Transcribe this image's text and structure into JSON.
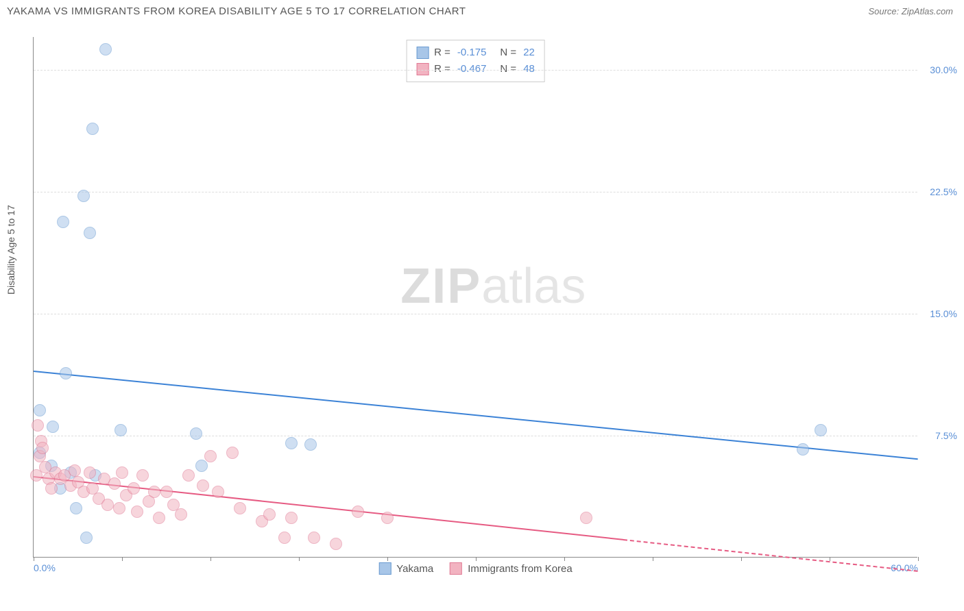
{
  "header": {
    "title": "YAKAMA VS IMMIGRANTS FROM KOREA DISABILITY AGE 5 TO 17 CORRELATION CHART",
    "source": "Source: ZipAtlas.com"
  },
  "chart": {
    "type": "scatter",
    "ylabel": "Disability Age 5 to 17",
    "watermark_zip": "ZIP",
    "watermark_atlas": "atlas",
    "xlim": [
      0,
      60
    ],
    "ylim": [
      0,
      32
    ],
    "xtick_positions": [
      0,
      6,
      12,
      18,
      24,
      30,
      36,
      42,
      48,
      54,
      60
    ],
    "xtick_labels": {
      "0": "0.0%",
      "60": "60.0%"
    },
    "ytick_positions": [
      7.5,
      15.0,
      22.5,
      30.0
    ],
    "ytick_labels": [
      "7.5%",
      "15.0%",
      "22.5%",
      "30.0%"
    ],
    "background_color": "#ffffff",
    "grid_color": "#dddddd",
    "axis_color": "#888888",
    "tick_label_color": "#5a8fd6",
    "series": [
      {
        "name": "Yakama",
        "legend_label": "Yakama",
        "fill_color": "#a8c6e8",
        "stroke_color": "#6a9bd1",
        "fill_opacity": 0.55,
        "marker_radius": 9,
        "R_label": "R =",
        "R_value": "-0.175",
        "N_label": "N =",
        "N_value": "22",
        "trendline": {
          "x1": 0,
          "y1": 11.5,
          "x2": 60,
          "y2": 6.1,
          "color": "#3b82d6",
          "dash_from_x": null
        },
        "points": [
          [
            4.9,
            31.2
          ],
          [
            4.0,
            26.3
          ],
          [
            3.4,
            22.2
          ],
          [
            2.0,
            20.6
          ],
          [
            3.8,
            19.9
          ],
          [
            2.2,
            11.3
          ],
          [
            0.4,
            9.0
          ],
          [
            1.3,
            8.0
          ],
          [
            5.9,
            7.8
          ],
          [
            0.4,
            6.4
          ],
          [
            1.2,
            5.6
          ],
          [
            2.5,
            5.2
          ],
          [
            4.2,
            5.0
          ],
          [
            11.0,
            7.6
          ],
          [
            11.4,
            5.6
          ],
          [
            17.5,
            7.0
          ],
          [
            18.8,
            6.9
          ],
          [
            2.9,
            3.0
          ],
          [
            3.6,
            1.2
          ],
          [
            1.8,
            4.2
          ],
          [
            53.4,
            7.8
          ],
          [
            52.2,
            6.6
          ]
        ]
      },
      {
        "name": "Immigrants from Korea",
        "legend_label": "Immigrants from Korea",
        "fill_color": "#f2b3c1",
        "stroke_color": "#e07a94",
        "fill_opacity": 0.55,
        "marker_radius": 9,
        "R_label": "R =",
        "R_value": "-0.467",
        "N_label": "N =",
        "N_value": "48",
        "trendline": {
          "x1": 0,
          "y1": 5.0,
          "x2": 60,
          "y2": -0.8,
          "color": "#e65a82",
          "dash_from_x": 40
        },
        "points": [
          [
            0.3,
            8.1
          ],
          [
            0.5,
            7.1
          ],
          [
            0.4,
            6.2
          ],
          [
            0.8,
            5.5
          ],
          [
            0.6,
            6.7
          ],
          [
            0.2,
            5.0
          ],
          [
            1.0,
            4.8
          ],
          [
            1.5,
            5.2
          ],
          [
            1.2,
            4.2
          ],
          [
            1.8,
            4.8
          ],
          [
            2.1,
            5.0
          ],
          [
            2.5,
            4.4
          ],
          [
            2.8,
            5.3
          ],
          [
            3.0,
            4.6
          ],
          [
            3.4,
            4.0
          ],
          [
            3.8,
            5.2
          ],
          [
            4.0,
            4.2
          ],
          [
            4.4,
            3.6
          ],
          [
            4.8,
            4.8
          ],
          [
            5.0,
            3.2
          ],
          [
            5.5,
            4.5
          ],
          [
            5.8,
            3.0
          ],
          [
            6.0,
            5.2
          ],
          [
            6.3,
            3.8
          ],
          [
            6.8,
            4.2
          ],
          [
            7.0,
            2.8
          ],
          [
            7.4,
            5.0
          ],
          [
            7.8,
            3.4
          ],
          [
            8.2,
            4.0
          ],
          [
            8.5,
            2.4
          ],
          [
            9.0,
            4.0
          ],
          [
            9.5,
            3.2
          ],
          [
            10.0,
            2.6
          ],
          [
            10.5,
            5.0
          ],
          [
            11.5,
            4.4
          ],
          [
            12.0,
            6.2
          ],
          [
            12.5,
            4.0
          ],
          [
            13.5,
            6.4
          ],
          [
            14.0,
            3.0
          ],
          [
            15.5,
            2.2
          ],
          [
            16.0,
            2.6
          ],
          [
            17.0,
            1.2
          ],
          [
            17.5,
            2.4
          ],
          [
            19.0,
            1.2
          ],
          [
            20.5,
            0.8
          ],
          [
            22.0,
            2.8
          ],
          [
            24.0,
            2.4
          ],
          [
            37.5,
            2.4
          ]
        ]
      }
    ]
  }
}
